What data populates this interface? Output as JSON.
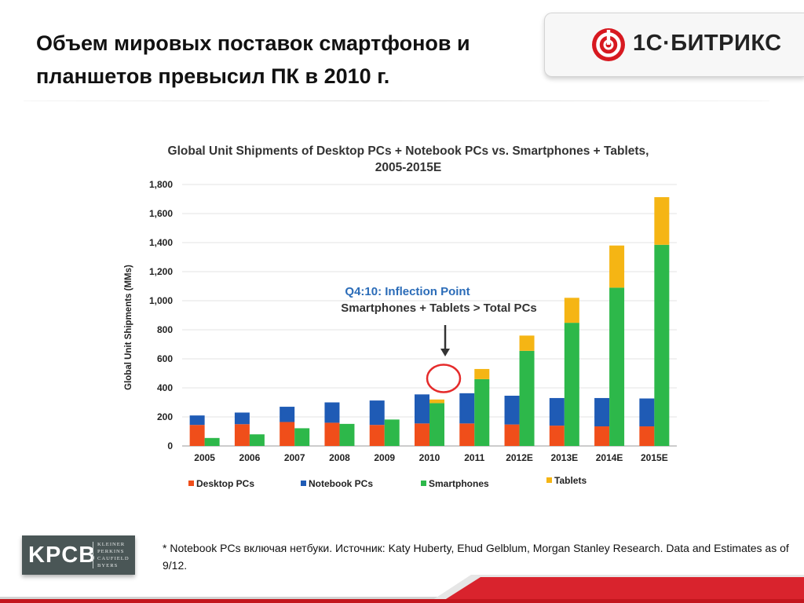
{
  "slide": {
    "title_lines": [
      "Объем мировых поставок смартфонов и",
      "планшетов превысил ПК в 2010 г."
    ],
    "logo_text": "1С·БИТРИКС",
    "footnote": "* Notebook PCs включая нетбуки. Источник: Katy Huberty, Ehud Gelblum, Morgan Stanley Research. Data and Estimates as of 9/12.",
    "kpcb": {
      "big": "KPCB",
      "small_lines": [
        "KLEINER",
        "PERKINS",
        "CAUFIELD",
        "BYERS"
      ]
    }
  },
  "chart_data": {
    "type": "bar",
    "title": "Global Unit Shipments of Desktop PCs + Notebook PCs vs. Smartphones + Tablets,",
    "subtitle": "2005-2015E",
    "ylabel": "Global Unit Shipments (MMs)",
    "xlabel": "",
    "ylim": [
      0,
      1800
    ],
    "yticks": [
      0,
      200,
      400,
      600,
      800,
      1000,
      1200,
      1400,
      1600,
      1800
    ],
    "ytick_labels": [
      "0",
      "200",
      "400",
      "600",
      "800",
      "1,000",
      "1,200",
      "1,400",
      "1,600",
      "1,800"
    ],
    "grid": true,
    "categories": [
      "2005",
      "2006",
      "2007",
      "2008",
      "2009",
      "2010",
      "2011",
      "2012E",
      "2013E",
      "2014E",
      "2015E"
    ],
    "stacks": [
      {
        "group": "PCs",
        "series": [
          {
            "name": "Desktop PCs",
            "color": "#f04e1a",
            "values": [
              145,
              150,
              165,
              160,
              145,
              155,
              155,
              148,
              140,
              135,
              135
            ]
          },
          {
            "name": "Notebook PCs",
            "color": "#1f5bb5",
            "values": [
              65,
              80,
              105,
              140,
              168,
              200,
              208,
              198,
              190,
              195,
              192
            ]
          }
        ]
      },
      {
        "group": "Smartphones + Tablets",
        "series": [
          {
            "name": "Smartphones",
            "color": "#2db84a",
            "values": [
              55,
              80,
              122,
              152,
              182,
              295,
              460,
              655,
              848,
              1090,
              1385
            ]
          },
          {
            "name": "Tablets",
            "color": "#f5b514",
            "values": [
              0,
              0,
              0,
              0,
              0,
              25,
              70,
              105,
              172,
              290,
              328
            ]
          }
        ]
      }
    ],
    "legend": [
      "Desktop PCs",
      "Notebook PCs",
      "Smartphones",
      "Tablets"
    ],
    "legend_position": "bottom",
    "annotation": {
      "line1": "Q4:10: Inflection Point",
      "line2": "Smartphones + Tablets > Total PCs",
      "category": "2010"
    }
  }
}
